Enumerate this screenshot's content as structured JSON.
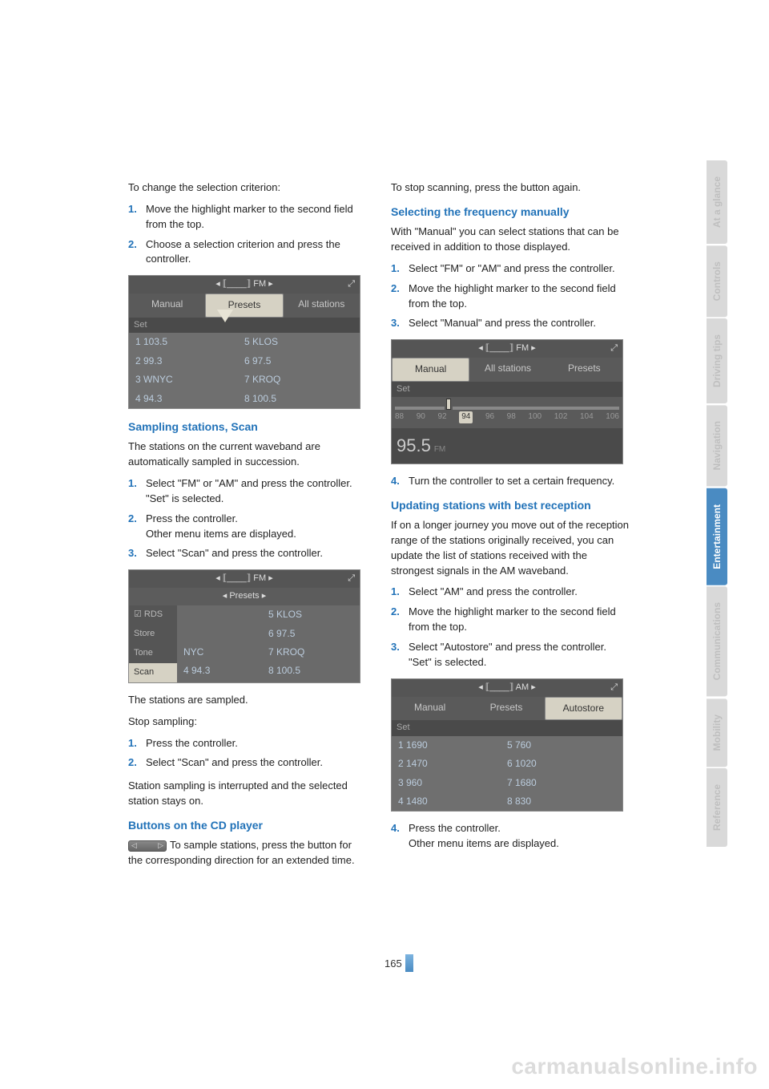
{
  "pageNumber": "165",
  "watermark": "carmanualsonline.info",
  "sideTabs": [
    {
      "label": "At a glance",
      "cls": "st-grey"
    },
    {
      "label": "Controls",
      "cls": "st-grey"
    },
    {
      "label": "Driving tips",
      "cls": "st-grey"
    },
    {
      "label": "Navigation",
      "cls": "st-grey"
    },
    {
      "label": "Entertainment",
      "cls": "st-blue"
    },
    {
      "label": "Communications",
      "cls": "st-grey"
    },
    {
      "label": "Mobility",
      "cls": "st-grey"
    },
    {
      "label": "Reference",
      "cls": "st-grey"
    }
  ],
  "left": {
    "intro": "To change the selection criterion:",
    "steps1": [
      "Move the highlight marker to the second field from the top.",
      "Choose a selection criterion and press the controller."
    ],
    "ss1": {
      "top": "◂  ⟦____⟧   FM  ▸",
      "tabs": [
        "Manual",
        "Presets",
        "All stations"
      ],
      "set": "Set",
      "rows": [
        [
          "1 103.5",
          "5 KLOS"
        ],
        [
          "2 99.3",
          "6 97.5"
        ],
        [
          "3 WNYC",
          "7 KROQ"
        ],
        [
          "4 94.3",
          "8 100.5"
        ]
      ]
    },
    "h1": "Sampling stations, Scan",
    "p1": "The stations on the current waveband are automatically sampled in succession.",
    "steps2": [
      "Select \"FM\" or \"AM\" and press the controller.\n\"Set\" is selected.",
      "Press the controller.\nOther menu items are displayed.",
      "Select \"Scan\" and press the controller."
    ],
    "ss2": {
      "top": "◂  ⟦____⟧   FM  ▸",
      "subtab": "◂ Presets ▸",
      "side": [
        "☑ RDS",
        "Store",
        "Tone",
        "Scan"
      ],
      "rows": [
        [
          "",
          "5 KLOS"
        ],
        [
          "",
          "6 97.5"
        ],
        [
          "NYC",
          "7 KROQ"
        ],
        [
          "4 94.3",
          "8 100.5"
        ]
      ]
    },
    "p2": "The stations are sampled.",
    "p3": "Stop sampling:",
    "steps3": [
      "Press the controller.",
      "Select \"Scan\" and press the controller."
    ],
    "p4": "Station sampling is interrupted and the selected station stays on.",
    "h2": "Buttons on the CD player",
    "p5": "To sample stations, press the button for the corresponding direction for an extended time."
  },
  "right": {
    "p0": "To stop scanning, press the button again.",
    "h1": "Selecting the frequency manually",
    "p1": "With \"Manual\" you can select stations that can be received in addition to those displayed.",
    "steps1": [
      "Select \"FM\" or \"AM\" and press the controller.",
      "Move the highlight marker to the second field from the top.",
      "Select \"Manual\" and press the controller."
    ],
    "ss3": {
      "top": "◂  ⟦____⟧   FM  ▸",
      "tabs": [
        "Manual",
        "All stations",
        "Presets"
      ],
      "set": "Set",
      "scale": [
        "88",
        "90",
        "92",
        "94",
        "96",
        "98",
        "100",
        "102",
        "104",
        "106"
      ],
      "freq": "95.5",
      "band": "FM"
    },
    "steps1b": [
      "Turn the controller to set a certain frequency."
    ],
    "h2": "Updating stations with best reception",
    "p2": "If on a longer journey you move out of the reception range of the stations originally received, you can update the list of stations received with the strongest signals in the AM waveband.",
    "steps2": [
      "Select \"AM\" and press the controller.",
      "Move the highlight marker to the second field from the top.",
      "Select \"Autostore\" and press the controller. \"Set\" is selected."
    ],
    "ss4": {
      "top": "◂  ⟦____⟧   AM  ▸",
      "tabs": [
        "Manual",
        "Presets",
        "Autostore"
      ],
      "set": "Set",
      "rows": [
        [
          "1 1690",
          "5 760"
        ],
        [
          "2 1470",
          "6 1020"
        ],
        [
          "3 960",
          "7 1680"
        ],
        [
          "4 1480",
          "8 830"
        ]
      ]
    },
    "steps2b": [
      "Press the controller.\nOther menu items are displayed."
    ]
  }
}
